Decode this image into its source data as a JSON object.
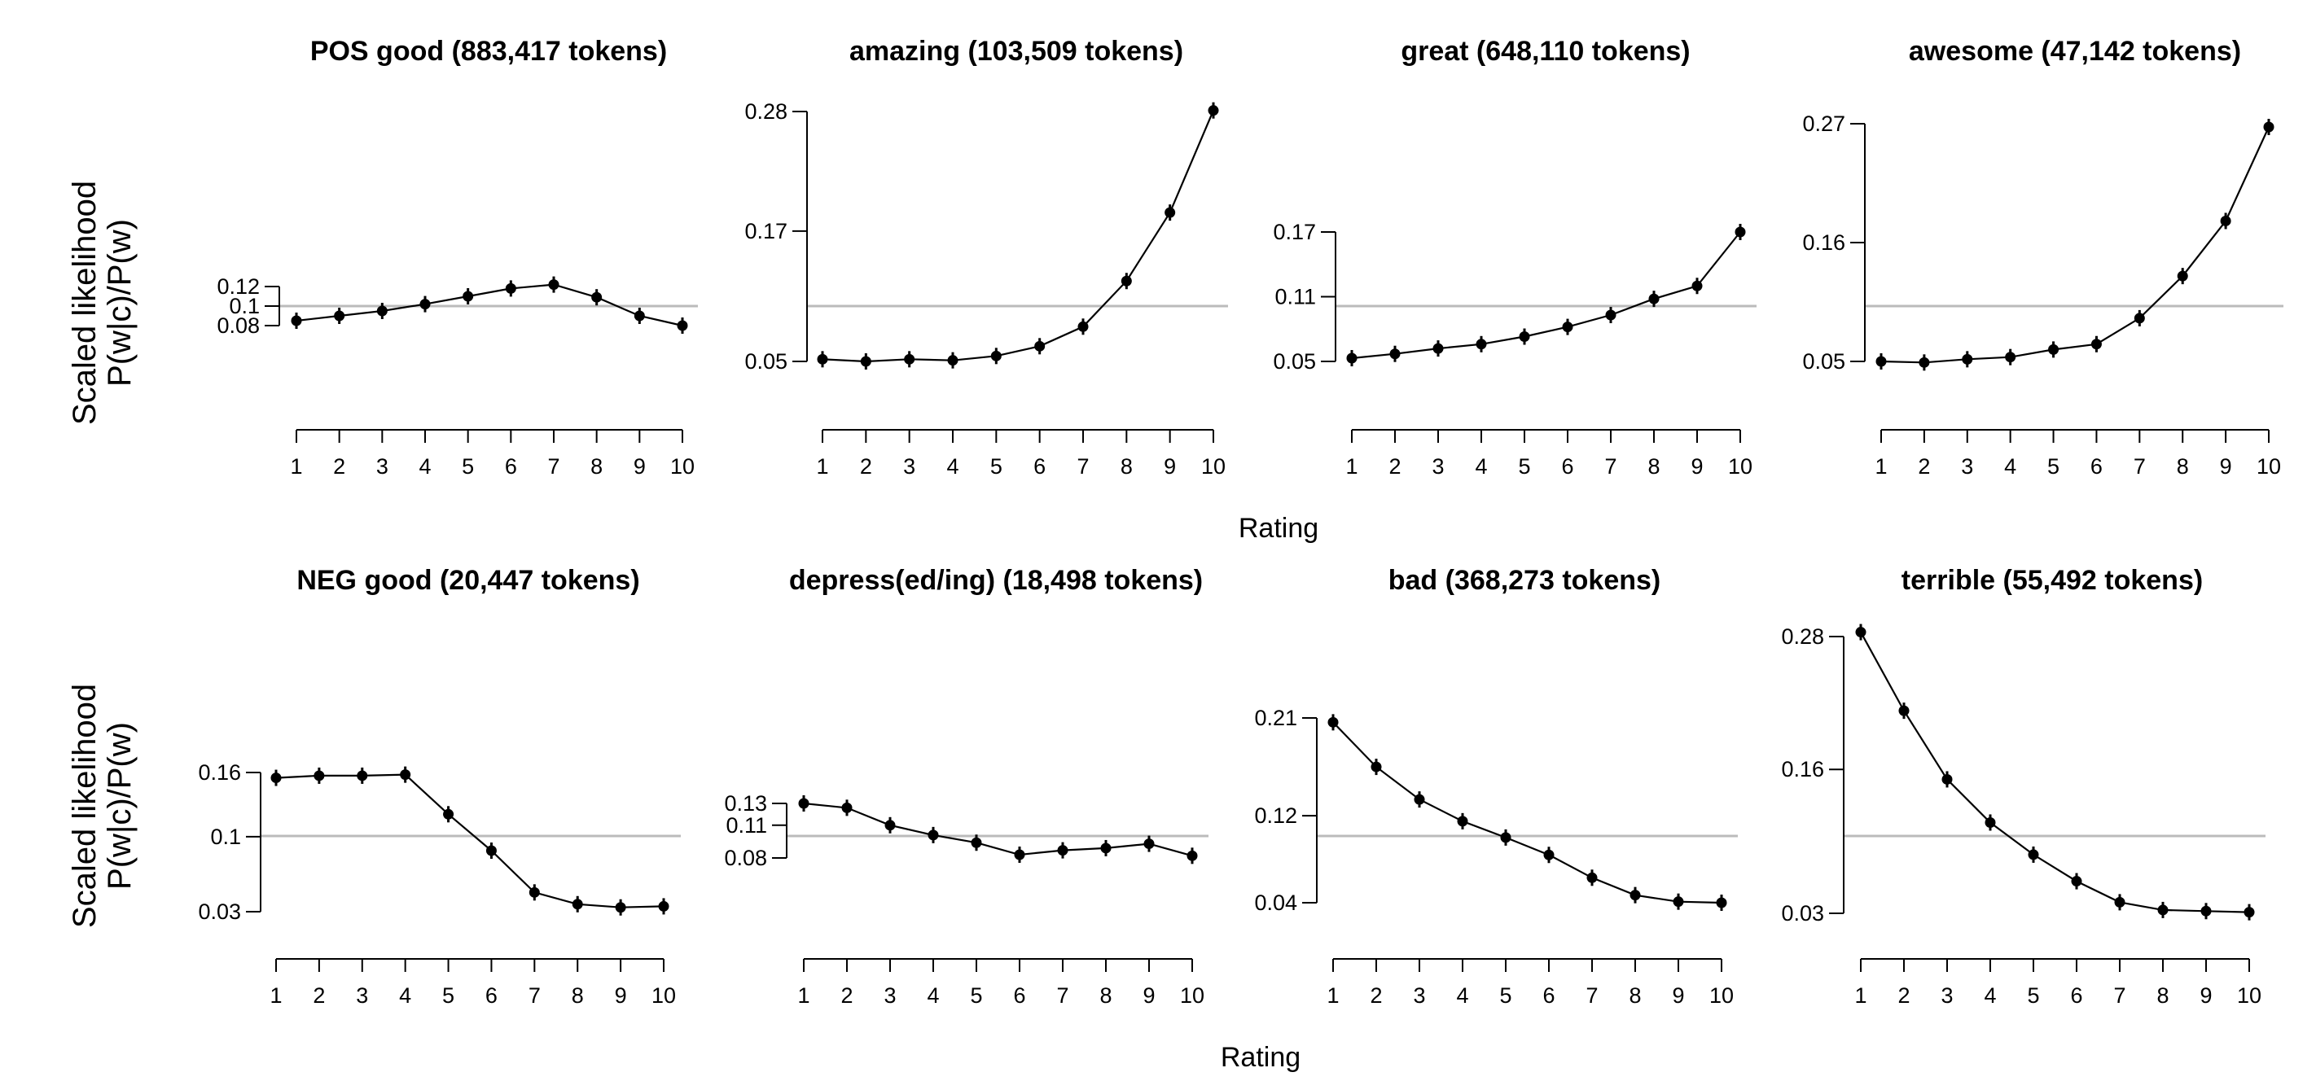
{
  "figure": {
    "ylabel_line1": "Scaled likelihood",
    "ylabel_line2": "P(w|c)/P(w)",
    "xlabel": "Rating"
  },
  "colors": {
    "line": "#000000",
    "reference_line": "#bbbbbb",
    "background": "#ffffff"
  },
  "chart_data": [
    {
      "type": "line",
      "title": "POS good (883,417 tokens)",
      "x": [
        1,
        2,
        3,
        4,
        5,
        6,
        7,
        8,
        9,
        10
      ],
      "y": [
        0.085,
        0.09,
        0.095,
        0.102,
        0.11,
        0.118,
        0.122,
        0.109,
        0.09,
        0.08
      ],
      "y_ticks": [
        0.08,
        0.1,
        0.12
      ],
      "ylim": [
        0.08,
        0.12
      ],
      "reference_y": 0.1,
      "xlabel": "",
      "ylabel": "Scaled likelihood P(w|c)/P(w)"
    },
    {
      "type": "line",
      "title": "amazing (103,509 tokens)",
      "x": [
        1,
        2,
        3,
        4,
        5,
        6,
        7,
        8,
        9,
        10
      ],
      "y": [
        0.052,
        0.05,
        0.052,
        0.051,
        0.055,
        0.064,
        0.082,
        0.124,
        0.187,
        0.281
      ],
      "y_ticks": [
        0.05,
        0.17,
        0.28
      ],
      "ylim": [
        0.05,
        0.28
      ],
      "reference_y": 0.1,
      "xlabel": "",
      "ylabel": ""
    },
    {
      "type": "line",
      "title": "great (648,110 tokens)",
      "x": [
        1,
        2,
        3,
        4,
        5,
        6,
        7,
        8,
        9,
        10
      ],
      "y": [
        0.053,
        0.057,
        0.062,
        0.066,
        0.073,
        0.082,
        0.093,
        0.108,
        0.12,
        0.17
      ],
      "y_ticks": [
        0.05,
        0.11,
        0.17
      ],
      "ylim": [
        0.05,
        0.17
      ],
      "reference_y": 0.1,
      "xlabel": "",
      "ylabel": ""
    },
    {
      "type": "line",
      "title": "awesome (47,142 tokens)",
      "x": [
        1,
        2,
        3,
        4,
        5,
        6,
        7,
        8,
        9,
        10
      ],
      "y": [
        0.05,
        0.049,
        0.052,
        0.054,
        0.061,
        0.066,
        0.09,
        0.129,
        0.18,
        0.267
      ],
      "y_ticks": [
        0.05,
        0.16,
        0.27
      ],
      "ylim": [
        0.05,
        0.27
      ],
      "reference_y": 0.1,
      "xlabel": "",
      "ylabel": ""
    },
    {
      "type": "line",
      "title": "NEG good (20,447 tokens)",
      "x": [
        1,
        2,
        3,
        4,
        5,
        6,
        7,
        8,
        9,
        10
      ],
      "y": [
        0.155,
        0.157,
        0.157,
        0.158,
        0.121,
        0.087,
        0.048,
        0.037,
        0.034,
        0.035
      ],
      "y_ticks": [
        0.03,
        0.1,
        0.16
      ],
      "ylim": [
        0.03,
        0.16
      ],
      "reference_y": 0.1,
      "xlabel": "",
      "ylabel": "Scaled likelihood P(w|c)/P(w)"
    },
    {
      "type": "line",
      "title": "depress(ed/ing) (18,498 tokens)",
      "x": [
        1,
        2,
        3,
        4,
        5,
        6,
        7,
        8,
        9,
        10
      ],
      "y": [
        0.13,
        0.126,
        0.11,
        0.101,
        0.094,
        0.083,
        0.087,
        0.089,
        0.093,
        0.082
      ],
      "y_ticks": [
        0.08,
        0.11,
        0.13
      ],
      "ylim": [
        0.08,
        0.13
      ],
      "reference_y": 0.1,
      "xlabel": "",
      "ylabel": ""
    },
    {
      "type": "line",
      "title": "bad (368,273 tokens)",
      "x": [
        1,
        2,
        3,
        4,
        5,
        6,
        7,
        8,
        9,
        10
      ],
      "y": [
        0.206,
        0.165,
        0.135,
        0.115,
        0.1,
        0.084,
        0.063,
        0.047,
        0.041,
        0.04
      ],
      "y_ticks": [
        0.04,
        0.12,
        0.21
      ],
      "ylim": [
        0.04,
        0.21
      ],
      "reference_y": 0.1,
      "xlabel": "",
      "ylabel": ""
    },
    {
      "type": "line",
      "title": "terrible (55,492 tokens)",
      "x": [
        1,
        2,
        3,
        4,
        5,
        6,
        7,
        8,
        9,
        10
      ],
      "y": [
        0.284,
        0.213,
        0.151,
        0.112,
        0.083,
        0.059,
        0.04,
        0.033,
        0.032,
        0.031
      ],
      "y_ticks": [
        0.03,
        0.16,
        0.28
      ],
      "ylim": [
        0.03,
        0.28
      ],
      "reference_y": 0.1,
      "xlabel": "",
      "ylabel": ""
    }
  ]
}
